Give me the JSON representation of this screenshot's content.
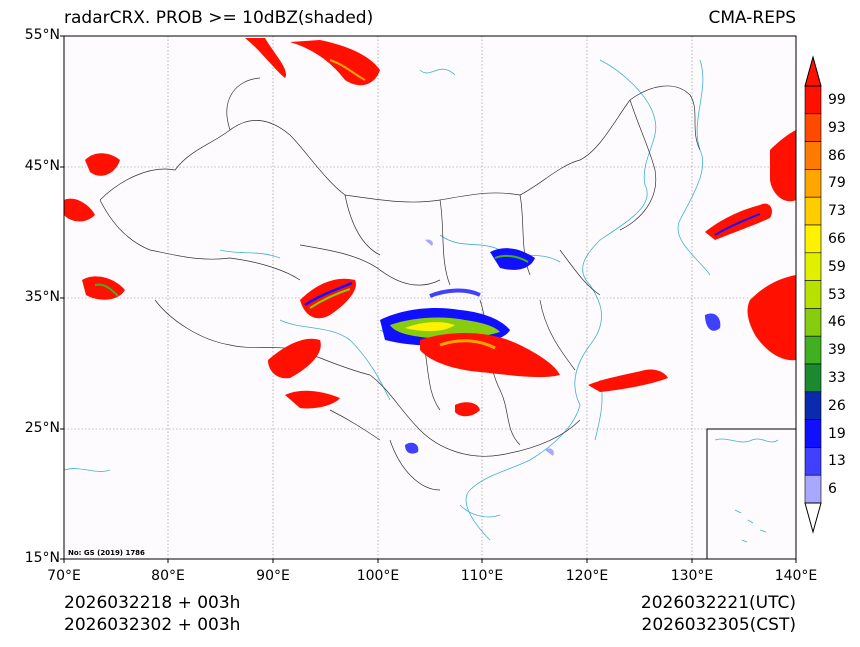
{
  "title": {
    "left": "radarCRX. PROB >= 10dBZ(shaded)",
    "right": "CMA-REPS"
  },
  "map": {
    "extent": {
      "lon_min": 70,
      "lon_max": 140,
      "lat_min": 15,
      "lat_max": 55
    },
    "lat_labels": [
      "55°N",
      "45°N",
      "35°N",
      "25°N",
      "15°N"
    ],
    "lon_labels": [
      "70°E",
      "80°E",
      "90°E",
      "100°E",
      "110°E",
      "120°E",
      "130°E",
      "140°E"
    ],
    "map_review_number": "No: GS (2019) 1786"
  },
  "colorbar": {
    "labels": [
      "99",
      "93",
      "86",
      "79",
      "73",
      "66",
      "59",
      "53",
      "46",
      "39",
      "33",
      "26",
      "19",
      "13",
      "6"
    ],
    "colors": [
      "#ff1000",
      "#ff4a00",
      "#ff7a00",
      "#ffa500",
      "#ffcc00",
      "#fff200",
      "#e0f000",
      "#b8e000",
      "#88cc10",
      "#40b020",
      "#1a8a30",
      "#0a2ab0",
      "#1010ff",
      "#4040ff",
      "#a8a8ff"
    ]
  },
  "footer": {
    "init_utc": "2026032218  +  003h",
    "init_cst": "2026032302  +  003h",
    "valid_utc": "2026032221(UTC)",
    "valid_cst": "2026032305(CST)"
  }
}
